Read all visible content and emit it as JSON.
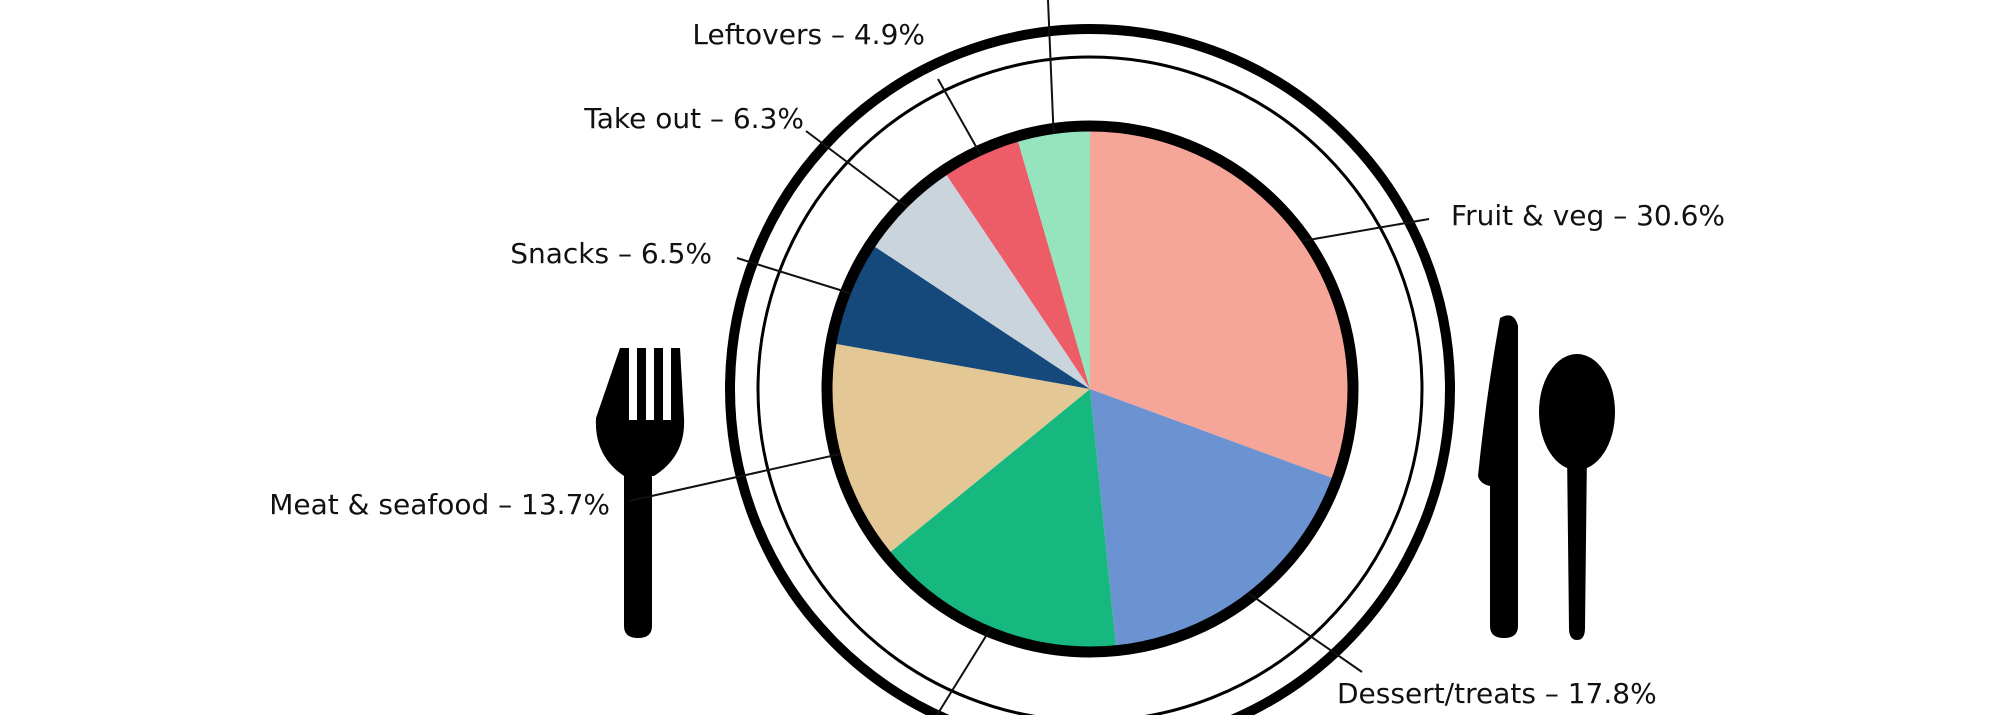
{
  "chart_data": {
    "type": "pie",
    "categories": [
      "Fruit & veg – 30.6%",
      "Dessert/treats – 17.8%",
      null,
      "Meat & seafood – 13.7%",
      "Snacks – 6.5%",
      "Take out – 6.3%",
      "Leftovers – 4.9%",
      null
    ],
    "values": [
      30.6,
      17.8,
      15.7,
      13.7,
      6.5,
      6.3,
      4.9,
      4.5
    ],
    "colors": [
      "#f6a698",
      "#6b93d2",
      "#16b87f",
      "#e3c795",
      "#15487b",
      "#c9d4dc",
      "#ed5d68",
      "#95e4bd"
    ]
  }
}
